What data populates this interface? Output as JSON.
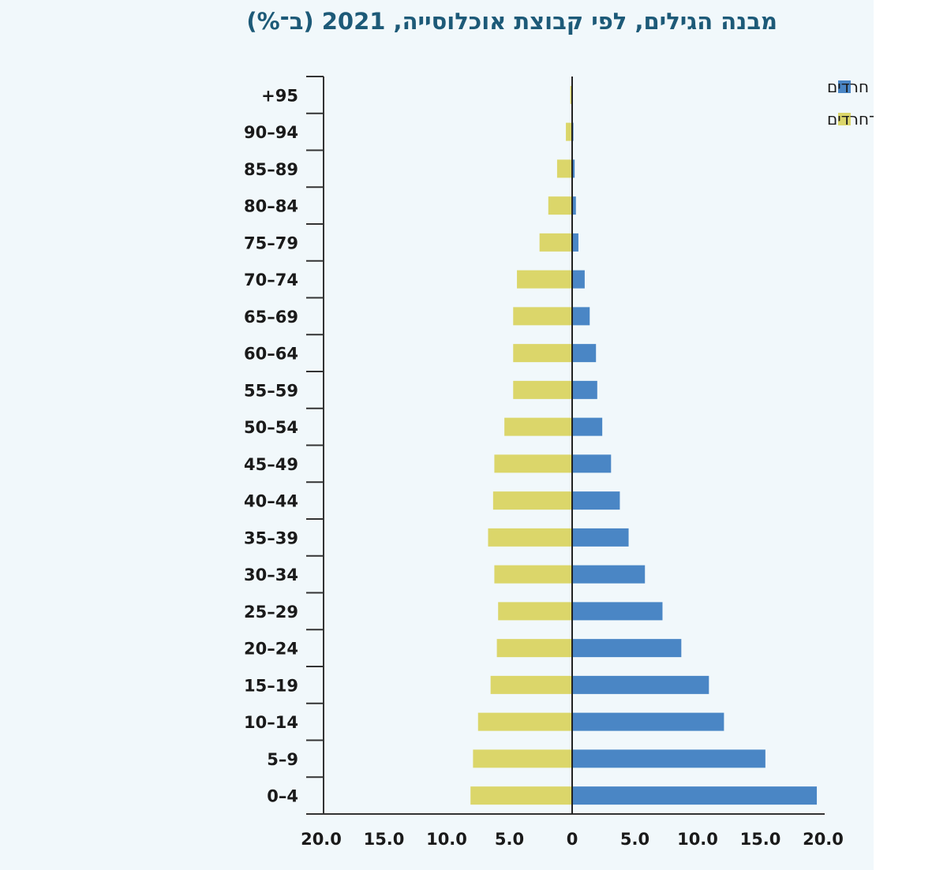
{
  "title": "מבנה הגילים, לפי קבוצת אוכלוסייה, 2021 (ב־%)",
  "chart_data": {
    "type": "bar",
    "orientation": "horizontal",
    "subtype": "population-pyramid",
    "title": "מבנה הגילים, לפי קבוצת אוכלוסייה, 2021 (ב־%)",
    "categories": [
      "0–4",
      "5–9",
      "10–14",
      "15–19",
      "20–24",
      "25–29",
      "30–34",
      "35–39",
      "40–44",
      "45–49",
      "50–54",
      "55–59",
      "60–64",
      "65–69",
      "70–74",
      "75–79",
      "80–84",
      "85–89",
      "90–94",
      "95+"
    ],
    "category_labels": [
      "0–4",
      "5–9",
      "10–14",
      "15–19",
      "20–24",
      "25–29",
      "30–34",
      "35–39",
      "40–44",
      "45–49",
      "50–54",
      "55–59",
      "60–64",
      "65–69",
      "70–74",
      "75–79",
      "80–84",
      "85–89",
      "90–94",
      "+95"
    ],
    "series": [
      {
        "name": "חרדים",
        "side": "right",
        "color": "#4a86c5",
        "values": [
          19.5,
          15.4,
          12.1,
          10.9,
          8.7,
          7.2,
          5.8,
          4.5,
          3.8,
          3.1,
          2.4,
          2.0,
          1.9,
          1.4,
          1.0,
          0.5,
          0.3,
          0.2,
          0.1,
          0.05
        ]
      },
      {
        "name": "יהודים לא־חרדים",
        "side": "left",
        "color": "#dbd66a",
        "values": [
          8.1,
          7.9,
          7.5,
          6.5,
          6.0,
          5.9,
          6.2,
          6.7,
          6.3,
          6.2,
          5.4,
          4.7,
          4.7,
          4.7,
          4.4,
          2.6,
          1.9,
          1.2,
          0.5,
          0.15
        ]
      }
    ],
    "x_ticks": [
      -20,
      -15,
      -10,
      -5,
      0,
      5,
      10,
      15,
      20
    ],
    "x_tick_labels": [
      "20.0",
      "15.0",
      "10.0",
      "5.0",
      "0",
      "5.0",
      "10.0",
      "15.0",
      "20.0"
    ],
    "xlim": [
      -20,
      20
    ],
    "xlabel": "",
    "ylabel": "",
    "legend": [
      {
        "label": "חרדים",
        "color": "#4a86c5"
      },
      {
        "label": "יהודים לא־חרדים",
        "color": "#dbd66a"
      }
    ],
    "legend_position": "top-right",
    "grid": false
  }
}
